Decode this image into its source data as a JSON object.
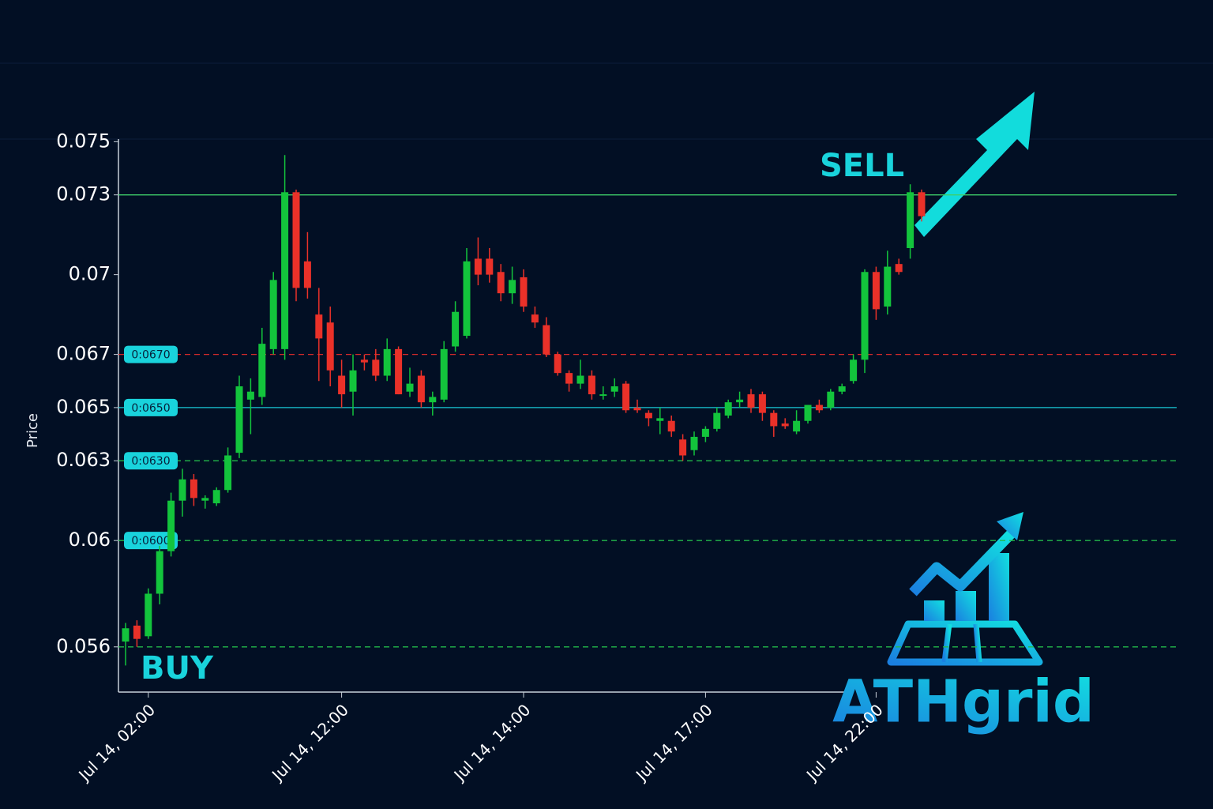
{
  "chart_data": {
    "type": "candlestick",
    "y_label": "Price",
    "ylim": [
      0.0543,
      0.0751
    ],
    "yticks": [
      0.075,
      0.073,
      0.07,
      0.067,
      0.065,
      0.063,
      0.06,
      0.056
    ],
    "up_color": "#13c43c",
    "down_color": "#ea3129",
    "categories": [
      null,
      null,
      "Jul 14, 02:00",
      null,
      null,
      null,
      null,
      null,
      null,
      null,
      null,
      null,
      null,
      null,
      null,
      null,
      null,
      null,
      null,
      "Jul 14, 12:00",
      null,
      null,
      null,
      null,
      null,
      null,
      null,
      null,
      null,
      null,
      null,
      null,
      null,
      null,
      null,
      "Jul 14, 14:00",
      null,
      null,
      null,
      null,
      null,
      null,
      null,
      null,
      null,
      null,
      null,
      null,
      null,
      null,
      null,
      "Jul 14, 17:00",
      null,
      null,
      null,
      null,
      null,
      null,
      null,
      null,
      null,
      null,
      null,
      null,
      null,
      null,
      "Jul 14, 22:00",
      null,
      null,
      null,
      null
    ],
    "open": [
      0.0562,
      0.0568,
      0.0564,
      0.058,
      0.0596,
      0.0615,
      0.0623,
      0.0615,
      0.0614,
      0.0619,
      0.0633,
      0.0653,
      0.0654,
      0.0672,
      0.0672,
      0.0731,
      0.0705,
      0.0685,
      0.0682,
      0.0662,
      0.0656,
      0.0668,
      0.0668,
      0.0662,
      0.0672,
      0.0656,
      0.0662,
      0.0652,
      0.0653,
      0.0673,
      0.0677,
      0.0706,
      0.0706,
      0.0701,
      0.0693,
      0.0699,
      0.0685,
      0.0681,
      0.067,
      0.0663,
      0.0659,
      0.0662,
      0.0655,
      0.0656,
      0.0659,
      0.065,
      0.0648,
      0.0645,
      0.0645,
      0.0638,
      0.0634,
      0.0639,
      0.0642,
      0.0647,
      0.0652,
      0.0655,
      0.0655,
      0.0648,
      0.0644,
      0.0641,
      0.0645,
      0.0651,
      0.065,
      0.0656,
      0.066,
      0.0668,
      0.0701,
      0.0688,
      0.0704,
      0.071,
      0.0731
    ],
    "high": [
      0.0569,
      0.057,
      0.0582,
      0.0598,
      0.0618,
      0.0627,
      0.0625,
      0.0617,
      0.062,
      0.0635,
      0.0662,
      0.0661,
      0.068,
      0.0701,
      0.0745,
      0.0732,
      0.0716,
      0.0695,
      0.0688,
      0.0668,
      0.067,
      0.067,
      0.0672,
      0.0676,
      0.0673,
      0.0665,
      0.0664,
      0.0656,
      0.0675,
      0.069,
      0.071,
      0.0714,
      0.071,
      0.0704,
      0.0703,
      0.0702,
      0.0688,
      0.0684,
      0.0671,
      0.0664,
      0.0668,
      0.0664,
      0.0658,
      0.0661,
      0.066,
      0.0653,
      0.0649,
      0.065,
      0.0647,
      0.064,
      0.0641,
      0.0643,
      0.065,
      0.0653,
      0.0656,
      0.0657,
      0.0656,
      0.0649,
      0.0646,
      0.0649,
      0.0651,
      0.0653,
      0.0657,
      0.0659,
      0.067,
      0.0702,
      0.0703,
      0.0709,
      0.0706,
      0.0734,
      0.0732
    ],
    "low": [
      0.0553,
      0.056,
      0.0563,
      0.0576,
      0.0594,
      0.0609,
      0.0613,
      0.0612,
      0.0613,
      0.0618,
      0.0631,
      0.064,
      0.0651,
      0.067,
      0.0668,
      0.069,
      0.0691,
      0.066,
      0.0658,
      0.065,
      0.0647,
      0.0664,
      0.066,
      0.066,
      0.0655,
      0.0654,
      0.065,
      0.0647,
      0.0652,
      0.0671,
      0.0676,
      0.0696,
      0.0697,
      0.069,
      0.0689,
      0.0686,
      0.068,
      0.0669,
      0.0662,
      0.0656,
      0.0657,
      0.0653,
      0.0653,
      0.0654,
      0.0648,
      0.0648,
      0.0643,
      0.064,
      0.0639,
      0.063,
      0.0632,
      0.0637,
      0.0641,
      0.0646,
      0.065,
      0.0648,
      0.0645,
      0.0639,
      0.0642,
      0.064,
      0.0644,
      0.0648,
      0.0649,
      0.0655,
      0.0659,
      0.0663,
      0.0683,
      0.0685,
      0.07,
      0.0706,
      0.072
    ],
    "close": [
      0.0567,
      0.0563,
      0.058,
      0.0596,
      0.0615,
      0.0623,
      0.0616,
      0.0616,
      0.0619,
      0.0632,
      0.0658,
      0.0656,
      0.0674,
      0.0698,
      0.0731,
      0.0695,
      0.0695,
      0.0676,
      0.0664,
      0.0655,
      0.0664,
      0.0667,
      0.0662,
      0.0672,
      0.0655,
      0.0659,
      0.0652,
      0.0654,
      0.0672,
      0.0686,
      0.0705,
      0.07,
      0.07,
      0.0693,
      0.0698,
      0.0688,
      0.0682,
      0.067,
      0.0663,
      0.0659,
      0.0662,
      0.0655,
      0.0655,
      0.0658,
      0.0649,
      0.0649,
      0.0646,
      0.0646,
      0.0641,
      0.0632,
      0.0639,
      0.0642,
      0.0648,
      0.0652,
      0.0653,
      0.065,
      0.0648,
      0.0643,
      0.0643,
      0.0645,
      0.0651,
      0.0649,
      0.0656,
      0.0658,
      0.0668,
      0.0701,
      0.0687,
      0.0703,
      0.0701,
      0.0731,
      0.0722
    ],
    "levels": [
      {
        "value": 0.073,
        "color": "#3fcf6a",
        "dashed": false
      },
      {
        "value": 0.067,
        "label": "0:0670",
        "color": "#d42a2a",
        "dashed": true
      },
      {
        "value": 0.065,
        "label": "0:0650",
        "color": "#19c9d6",
        "dashed": false
      },
      {
        "value": 0.063,
        "label": "0:0630",
        "color": "#22b84a",
        "dashed": true
      },
      {
        "value": 0.06,
        "label": "0:0600",
        "color": "#22b84a",
        "dashed": true
      },
      {
        "value": 0.056,
        "color": "#22b84a",
        "dashed": true
      }
    ],
    "annotations": {
      "buy": "BUY",
      "sell": "SELL"
    }
  },
  "logo": {
    "text": "ATHgrid"
  }
}
